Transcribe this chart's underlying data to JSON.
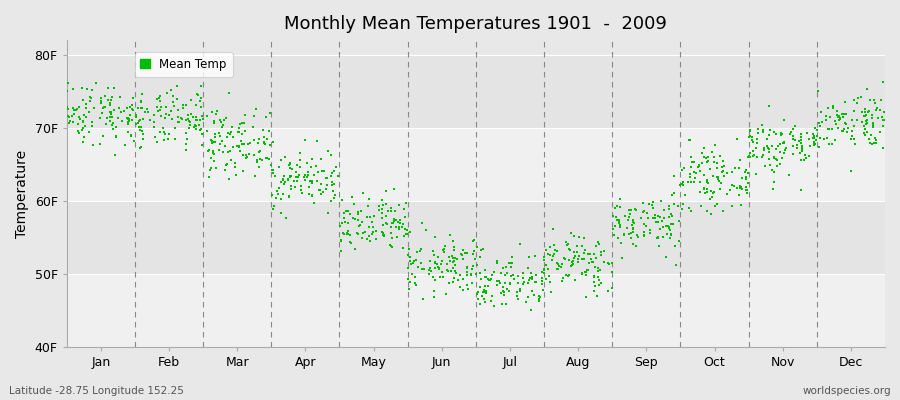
{
  "title": "Monthly Mean Temperatures 1901  -  2009",
  "ylabel": "Temperature",
  "xlabel_labels": [
    "Jan",
    "Feb",
    "Mar",
    "Apr",
    "May",
    "Jun",
    "Jul",
    "Aug",
    "Sep",
    "Oct",
    "Nov",
    "Dec"
  ],
  "ytick_labels": [
    "40F",
    "50F",
    "60F",
    "70F",
    "80F"
  ],
  "ytick_values": [
    40,
    50,
    60,
    70,
    80
  ],
  "ylim": [
    40,
    82
  ],
  "xlim": [
    0,
    12
  ],
  "dot_color": "#00bb00",
  "dot_size": 2.5,
  "background_color": "#e8e8e8",
  "plot_bg_color": "#e8e8e8",
  "gridline_color": "#ffffff",
  "alt_band_color": "#f0f0f0",
  "dashed_vline_color": "#888888",
  "legend_label": "Mean Temp",
  "footer_left": "Latitude -28.75 Longitude 152.25",
  "footer_right": "worldspecies.org",
  "n_years": 109,
  "monthly_means_f": [
    72.0,
    71.0,
    68.0,
    63.0,
    56.5,
    51.0,
    49.0,
    51.5,
    57.0,
    63.0,
    67.5,
    71.0
  ],
  "monthly_stds_f": [
    2.2,
    2.0,
    2.2,
    2.0,
    2.0,
    2.0,
    2.0,
    2.0,
    2.0,
    2.0,
    2.0,
    2.0
  ]
}
